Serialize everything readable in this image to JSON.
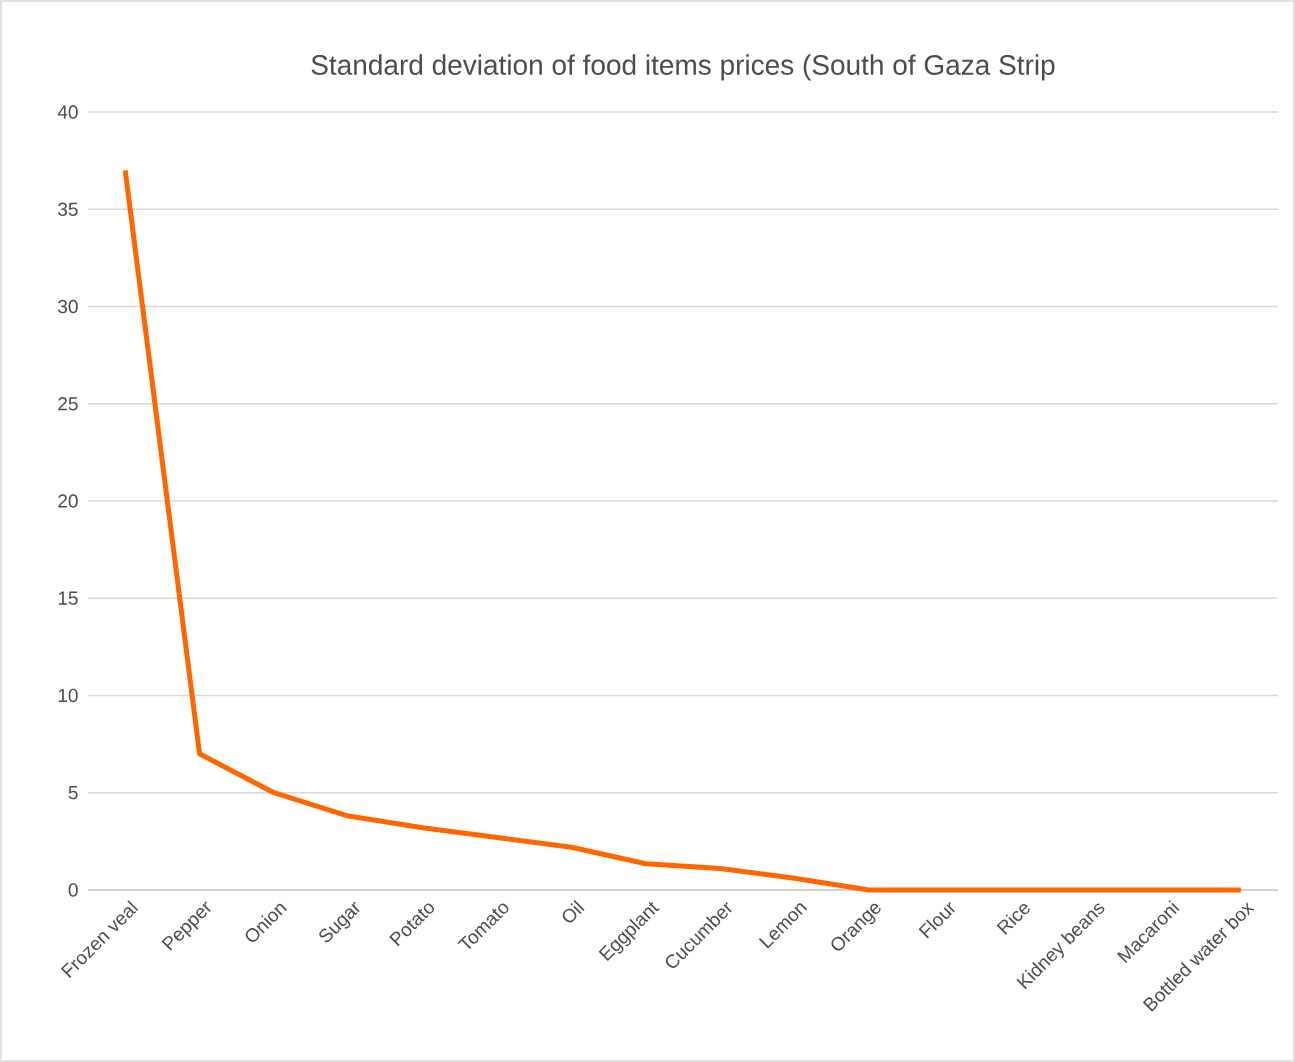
{
  "chart_data": {
    "type": "line",
    "title": "Standard deviation of food items prices (South of Gaza Strip",
    "categories": [
      "Frozen veal",
      "Pepper",
      "Onion",
      "Sugar",
      "Potato",
      "Tomato",
      "Oil",
      "Eggplant",
      "Cucumber",
      "Lemon",
      "Orange",
      "Flour",
      "Rice",
      "Kidney beans",
      "Macaroni",
      "Bottled water box"
    ],
    "values": [
      37,
      7,
      5,
      3.8,
      3.2,
      2.7,
      2.2,
      1.35,
      1.1,
      0.6,
      0,
      0,
      0,
      0,
      0,
      0
    ],
    "color": "#ff6600",
    "ylim": [
      0,
      40
    ],
    "yticks": [
      0,
      5,
      10,
      15,
      20,
      25,
      30,
      35,
      40
    ],
    "grid": "y"
  }
}
